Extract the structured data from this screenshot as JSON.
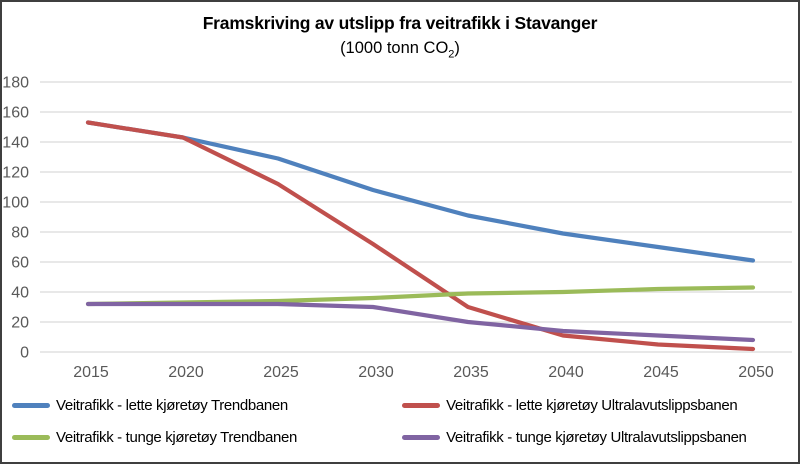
{
  "chart_data": {
    "type": "line",
    "title": "Framskriving av utslipp fra veitrafikk i Stavanger",
    "subtitle_parts": {
      "pre": "(1000 tonn CO",
      "sub": "2",
      "post": ")"
    },
    "x": [
      2015,
      2020,
      2025,
      2030,
      2035,
      2040,
      2045,
      2050
    ],
    "series": [
      {
        "name": "Veitrafikk - lette kjøretøy Trendbanen",
        "color": "#4F81BD",
        "values": [
          153,
          143,
          129,
          108,
          91,
          79,
          70,
          61
        ]
      },
      {
        "name": "Veitrafikk - lette kjøretøy Ultralavutslippsbanen",
        "color": "#C0504D",
        "values": [
          153,
          143,
          112,
          72,
          30,
          11,
          5,
          2
        ]
      },
      {
        "name": "Veitrafikk - tunge kjøretøy Trendbanen",
        "color": "#9BBB59",
        "values": [
          32,
          33,
          34,
          36,
          39,
          40,
          42,
          43
        ]
      },
      {
        "name": "Veitrafikk - tunge kjøretøy Ultralavutslippsbanen",
        "color": "#8064A2",
        "values": [
          32,
          32,
          32,
          30,
          20,
          14,
          11,
          8
        ]
      }
    ],
    "ylim": [
      0,
      180
    ],
    "ytick_step": 20,
    "grid": true,
    "legend_position": "bottom",
    "axis_text_color": "#595959",
    "gridline_color": "#D9D9D9",
    "frame_color": "#3F3F3F"
  }
}
